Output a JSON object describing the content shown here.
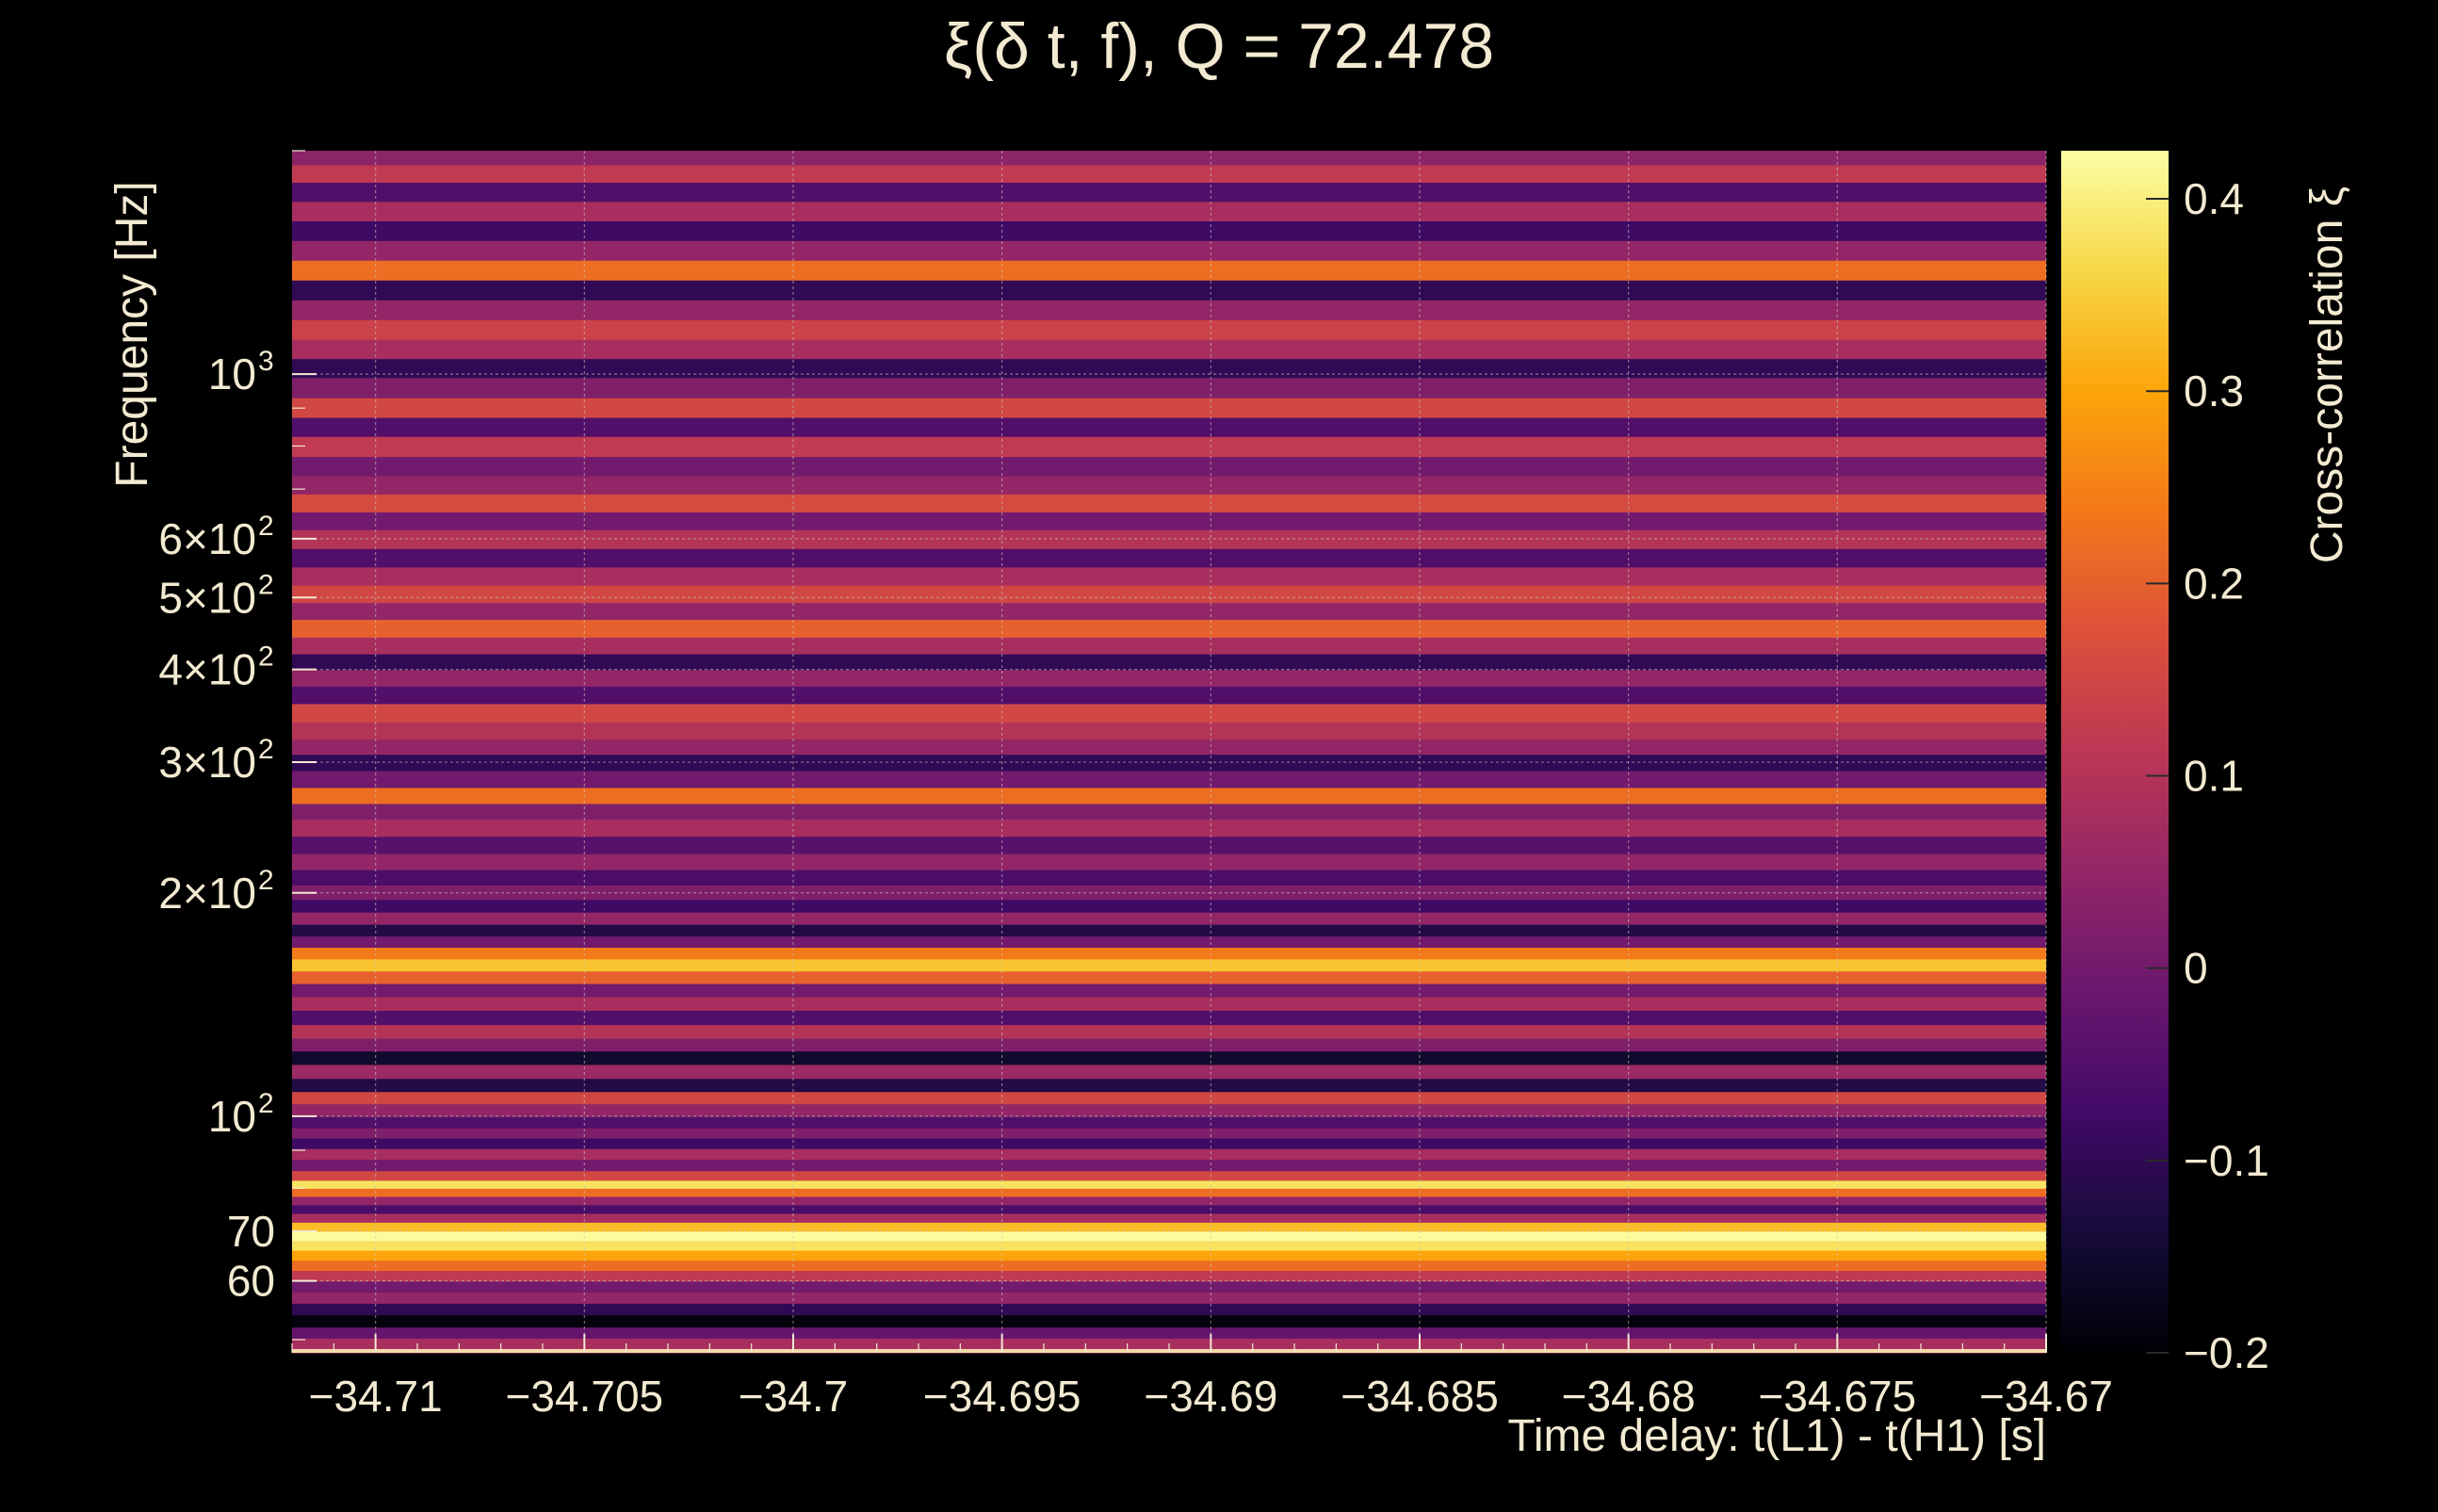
{
  "chart_data": {
    "type": "heatmap",
    "title": "ξ(δ t, f), Q = 72.478",
    "xlabel": "Time delay: t(L1) - t(H1) [s]",
    "ylabel": "Frequency [Hz]",
    "colorbar_label": "Cross-correlation ξ",
    "xlim": [
      -34.712,
      -34.67
    ],
    "ylim": [
      48,
      2000
    ],
    "y_scale": "log",
    "grid": true,
    "colormap": "inferno",
    "clim": [
      -0.2,
      0.425
    ],
    "colors": {
      "background": "#000000",
      "text": "#f3ead2",
      "grid": "#cfc8c0"
    },
    "x_ticks": [
      {
        "value": -34.71,
        "label": "−34.71"
      },
      {
        "value": -34.705,
        "label": "−34.705"
      },
      {
        "value": -34.7,
        "label": "−34.7"
      },
      {
        "value": -34.695,
        "label": "−34.695"
      },
      {
        "value": -34.69,
        "label": "−34.69"
      },
      {
        "value": -34.685,
        "label": "−34.685"
      },
      {
        "value": -34.68,
        "label": "−34.68"
      },
      {
        "value": -34.675,
        "label": "−34.675"
      },
      {
        "value": -34.67,
        "label": "−34.67"
      }
    ],
    "y_ticks": [
      {
        "value": 60,
        "label": "60",
        "sup": ""
      },
      {
        "value": 70,
        "label": "70",
        "sup": ""
      },
      {
        "value": 100,
        "label": "10",
        "sup": "2"
      },
      {
        "value": 200,
        "label": "2×10",
        "sup": "2"
      },
      {
        "value": 300,
        "label": "3×10",
        "sup": "2"
      },
      {
        "value": 400,
        "label": "4×10",
        "sup": "2"
      },
      {
        "value": 500,
        "label": "5×10",
        "sup": "2"
      },
      {
        "value": 600,
        "label": "6×10",
        "sup": "2"
      },
      {
        "value": 1000,
        "label": "10",
        "sup": "3"
      }
    ],
    "colorbar_ticks": [
      {
        "value": 0.4,
        "label": "0.4"
      },
      {
        "value": 0.3,
        "label": "0.3"
      },
      {
        "value": 0.2,
        "label": "0.2"
      },
      {
        "value": 0.1,
        "label": "0.1"
      },
      {
        "value": 0,
        "label": "0"
      },
      {
        "value": -0.1,
        "label": "−0.1"
      },
      {
        "value": -0.2,
        "label": "−0.2"
      }
    ],
    "bands": [
      {
        "f": 49.5,
        "v": 0.08
      },
      {
        "f": 51,
        "v": -0.02
      },
      {
        "f": 53,
        "v": -0.19
      },
      {
        "f": 55,
        "v": -0.1
      },
      {
        "f": 57,
        "v": 0.05
      },
      {
        "f": 59,
        "v": 0.0
      },
      {
        "f": 61,
        "v": 0.12
      },
      {
        "f": 63,
        "v": 0.22
      },
      {
        "f": 65,
        "v": 0.3
      },
      {
        "f": 67,
        "v": 0.38
      },
      {
        "f": 69,
        "v": 0.42
      },
      {
        "f": 71,
        "v": 0.33
      },
      {
        "f": 73,
        "v": 0.08
      },
      {
        "f": 75,
        "v": -0.06
      },
      {
        "f": 77,
        "v": 0.05
      },
      {
        "f": 79,
        "v": 0.22
      },
      {
        "f": 81,
        "v": 0.38
      },
      {
        "f": 83,
        "v": 0.15
      },
      {
        "f": 86,
        "v": 0.0
      },
      {
        "f": 89,
        "v": 0.08
      },
      {
        "f": 92,
        "v": -0.08
      },
      {
        "f": 95,
        "v": 0.02
      },
      {
        "f": 98,
        "v": -0.05
      },
      {
        "f": 102,
        "v": 0.05
      },
      {
        "f": 106,
        "v": 0.15
      },
      {
        "f": 110,
        "v": -0.12
      },
      {
        "f": 115,
        "v": 0.06
      },
      {
        "f": 120,
        "v": -0.15
      },
      {
        "f": 125,
        "v": 0.02
      },
      {
        "f": 130,
        "v": 0.1
      },
      {
        "f": 136,
        "v": -0.05
      },
      {
        "f": 142,
        "v": 0.08
      },
      {
        "f": 148,
        "v": 0.0
      },
      {
        "f": 154,
        "v": 0.2
      },
      {
        "f": 160,
        "v": 0.34
      },
      {
        "f": 166,
        "v": 0.24
      },
      {
        "f": 172,
        "v": 0.0
      },
      {
        "f": 178,
        "v": -0.12
      },
      {
        "f": 185,
        "v": 0.05
      },
      {
        "f": 192,
        "v": -0.08
      },
      {
        "f": 200,
        "v": 0.02
      },
      {
        "f": 210,
        "v": -0.06
      },
      {
        "f": 220,
        "v": 0.05
      },
      {
        "f": 232,
        "v": -0.04
      },
      {
        "f": 245,
        "v": 0.08
      },
      {
        "f": 258,
        "v": 0.02
      },
      {
        "f": 270,
        "v": 0.22
      },
      {
        "f": 285,
        "v": 0.0
      },
      {
        "f": 300,
        "v": -0.1
      },
      {
        "f": 315,
        "v": 0.05
      },
      {
        "f": 330,
        "v": 0.1
      },
      {
        "f": 350,
        "v": 0.15
      },
      {
        "f": 370,
        "v": -0.05
      },
      {
        "f": 390,
        "v": 0.05
      },
      {
        "f": 410,
        "v": -0.1
      },
      {
        "f": 430,
        "v": 0.08
      },
      {
        "f": 455,
        "v": 0.2
      },
      {
        "f": 480,
        "v": 0.05
      },
      {
        "f": 505,
        "v": 0.15
      },
      {
        "f": 535,
        "v": 0.08
      },
      {
        "f": 565,
        "v": -0.05
      },
      {
        "f": 600,
        "v": 0.1
      },
      {
        "f": 635,
        "v": 0.0
      },
      {
        "f": 670,
        "v": 0.16
      },
      {
        "f": 710,
        "v": 0.05
      },
      {
        "f": 750,
        "v": 0.0
      },
      {
        "f": 800,
        "v": 0.12
      },
      {
        "f": 850,
        "v": -0.05
      },
      {
        "f": 900,
        "v": 0.15
      },
      {
        "f": 960,
        "v": 0.02
      },
      {
        "f": 1020,
        "v": -0.1
      },
      {
        "f": 1080,
        "v": 0.08
      },
      {
        "f": 1150,
        "v": 0.14
      },
      {
        "f": 1220,
        "v": 0.05
      },
      {
        "f": 1300,
        "v": -0.1
      },
      {
        "f": 1380,
        "v": 0.22
      },
      {
        "f": 1470,
        "v": 0.05
      },
      {
        "f": 1560,
        "v": -0.08
      },
      {
        "f": 1660,
        "v": 0.08
      },
      {
        "f": 1760,
        "v": -0.05
      },
      {
        "f": 1870,
        "v": 0.12
      },
      {
        "f": 1960,
        "v": 0.04
      }
    ]
  }
}
